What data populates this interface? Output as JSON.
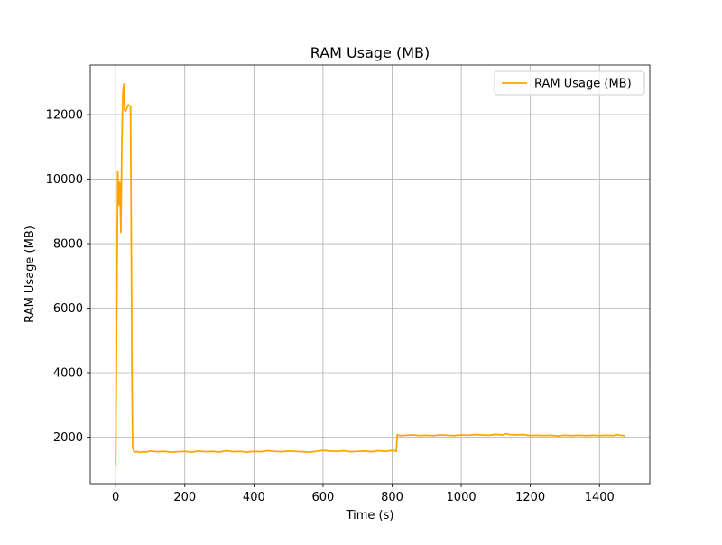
{
  "chart_data": {
    "type": "line",
    "title": "RAM Usage (MB)",
    "xlabel": "Time (s)",
    "ylabel": "RAM Usage (MB)",
    "xlim": [
      -73.6,
      1545.6
    ],
    "ylim": [
      560,
      13540
    ],
    "x_ticks": [
      0,
      200,
      400,
      600,
      800,
      1000,
      1200,
      1400
    ],
    "y_ticks": [
      2000,
      4000,
      6000,
      8000,
      10000,
      12000
    ],
    "x_tick_labels": [
      "0",
      "200",
      "400",
      "600",
      "800",
      "1000",
      "1200",
      "1400"
    ],
    "y_tick_labels": [
      "2000",
      "4000",
      "6000",
      "8000",
      "10000",
      "12000"
    ],
    "grid": true,
    "legend_position": "top-right",
    "line_color": "#ffa500",
    "series": [
      {
        "name": "RAM Usage (MB)",
        "color": "#ffa500",
        "x": [
          0,
          3,
          6,
          9,
          12,
          15,
          18,
          21,
          24,
          26,
          28,
          31,
          34,
          37,
          40,
          43,
          45,
          47,
          49,
          51,
          53,
          56,
          60,
          70,
          80,
          90,
          100,
          120,
          140,
          160,
          180,
          200,
          220,
          240,
          260,
          280,
          300,
          320,
          340,
          360,
          380,
          400,
          420,
          440,
          460,
          480,
          500,
          520,
          540,
          560,
          580,
          600,
          620,
          640,
          660,
          680,
          700,
          720,
          740,
          760,
          780,
          800,
          810,
          812,
          815,
          818,
          825,
          840,
          860,
          880,
          900,
          920,
          940,
          960,
          980,
          1000,
          1020,
          1040,
          1060,
          1080,
          1100,
          1120,
          1130,
          1140,
          1160,
          1180,
          1200,
          1220,
          1240,
          1260,
          1280,
          1300,
          1320,
          1340,
          1360,
          1380,
          1400,
          1420,
          1440,
          1450,
          1460,
          1470,
          1475
        ],
        "values": [
          1130,
          5800,
          10250,
          9200,
          9900,
          8350,
          11200,
          12700,
          12960,
          12150,
          12100,
          12150,
          12250,
          12300,
          12280,
          12250,
          8500,
          4200,
          1700,
          1620,
          1550,
          1540,
          1560,
          1530,
          1550,
          1540,
          1570,
          1550,
          1560,
          1540,
          1550,
          1560,
          1540,
          1570,
          1550,
          1560,
          1540,
          1580,
          1550,
          1560,
          1540,
          1560,
          1550,
          1580,
          1560,
          1550,
          1570,
          1560,
          1550,
          1540,
          1560,
          1590,
          1570,
          1560,
          1580,
          1550,
          1560,
          1570,
          1550,
          1580,
          1560,
          1590,
          1570,
          1560,
          2080,
          2060,
          2050,
          2060,
          2070,
          2050,
          2060,
          2050,
          2070,
          2060,
          2050,
          2070,
          2060,
          2080,
          2070,
          2060,
          2090,
          2070,
          2110,
          2080,
          2070,
          2080,
          2050,
          2060,
          2050,
          2060,
          2040,
          2060,
          2050,
          2060,
          2050,
          2060,
          2050,
          2060,
          2050,
          2080,
          2060,
          2050,
          2050
        ]
      }
    ]
  }
}
